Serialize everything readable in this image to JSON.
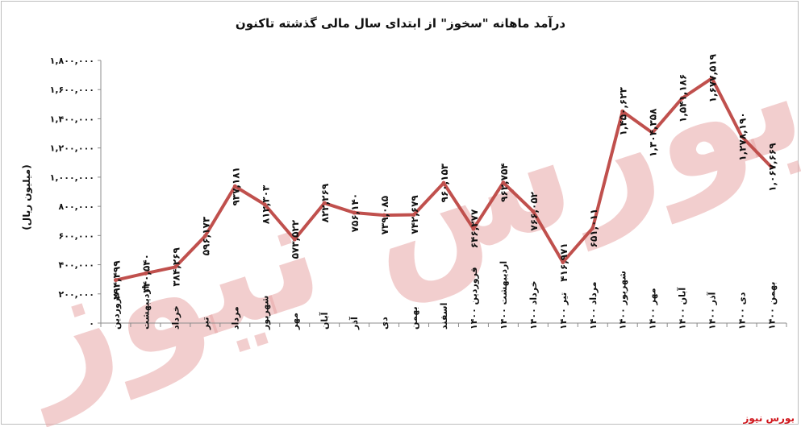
{
  "chart_data": {
    "type": "line",
    "title": "درآمد ماهانه \"سخوز\" از ابتدای سال مالی گذشته تاکنون",
    "ylabel": "(میلیون ریال)",
    "xlabel": "",
    "ylim": [
      0,
      1800000
    ],
    "y_ticks": [
      "۰",
      "۲۰۰,۰۰۰",
      "۴۰۰,۰۰۰",
      "۶۰۰,۰۰۰",
      "۸۰۰,۰۰۰",
      "۱,۰۰۰,۰۰۰",
      "۱,۲۰۰,۰۰۰",
      "۱,۴۰۰,۰۰۰",
      "۱,۶۰۰,۰۰۰",
      "۱,۸۰۰,۰۰۰"
    ],
    "y_tick_values": [
      0,
      200000,
      400000,
      600000,
      800000,
      1000000,
      1200000,
      1400000,
      1600000,
      1800000
    ],
    "grid": false,
    "categories": [
      "فروردین",
      "اردیبهشت",
      "خرداد",
      "تیر",
      "مرداد",
      "شهریور",
      "مهر",
      "آبان",
      "آذر",
      "دی",
      "بهمن",
      "اسفند",
      "فروردین ۱۴۰۰",
      "اردیبهشت ۱۴۰۰",
      "خرداد ۱۴۰۰",
      "تیر ۱۴۰۰",
      "مرداد ۱۴۰۰",
      "شهریور ۱۴۰۰",
      "مهر ۱۴۰۰",
      "آبان ۱۴۰۰",
      "آذر ۱۴۰۰",
      "دی ۱۴۰۰",
      "بهمن ۱۴۰۰"
    ],
    "values": [
      294499,
      340540,
      384269,
      596173,
      937181,
      812303,
      573522,
      822269,
      756140,
      739085,
      742679,
      960153,
      646277,
      962754,
      766052,
      416971,
      651011,
      1450623,
      1304358,
      1541186,
      1677519,
      1278190,
      1067669
    ],
    "data_labels": [
      "۲۹۴,۴۹۹",
      "۳۴۰,۵۴۰",
      "۳۸۴,۲۶۹",
      "۵۹۶,۱۷۳",
      "۹۳۷,۱۸۱",
      "۸۱۲,۳۰۳",
      "۵۷۳,۵۲۲",
      "۸۲۲,۲۶۹",
      "۷۵۶,۱۴۰",
      "۷۳۹,۰۸۵",
      "۷۴۲,۶۷۹",
      "۹۶۰,۱۵۳",
      "۶۴۶,۲۷۷",
      "۹۶۲,۷۵۴",
      "۷۶۶,۰۵۲",
      "۴۱۶,۹۷۱",
      "۶۵۱,۰۱۱",
      "۱,۴۵۰,۶۲۳",
      "۱,۳۰۴,۳۵۸",
      "۱,۵۴۱,۱۸۶",
      "۱,۶۷۷,۵۱۹",
      "۱,۲۷۸,۱۹۰",
      "۱,۰۶۷,۶۶۹"
    ],
    "line_color": "#c0504d",
    "label_color": "#111111"
  },
  "watermark": {
    "text": "بورس نیوز",
    "color": "#e8a6a6"
  },
  "brand": {
    "text": "بورس نیوز",
    "color": "#d0161c"
  }
}
